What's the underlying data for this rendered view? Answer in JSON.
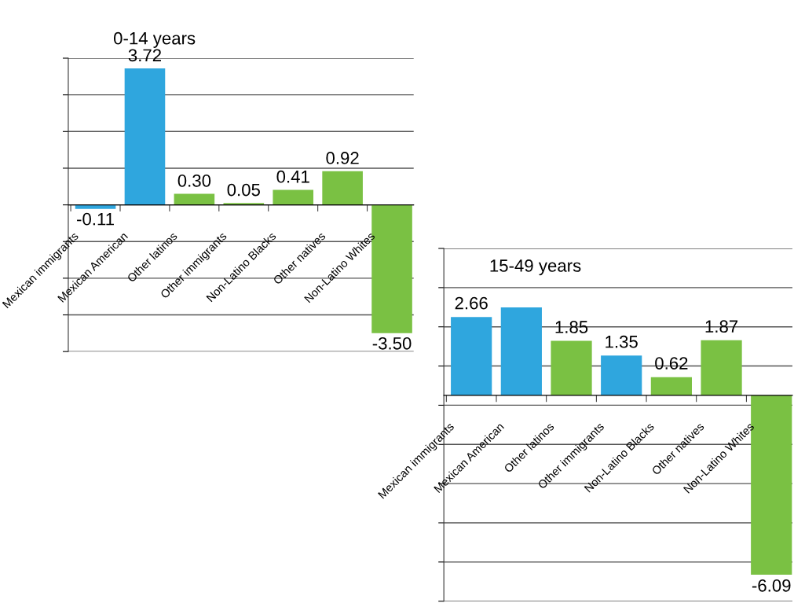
{
  "chart_data": [
    {
      "type": "bar",
      "title": "0-14 years",
      "categories": [
        "Mexican immigrants",
        "Mexican American",
        "Other latinos",
        "Other immigrants",
        "Non-Latino Blacks",
        "Other natives",
        "Non-Latino Whites"
      ],
      "values": [
        -0.11,
        3.72,
        0.3,
        0.05,
        0.41,
        0.92,
        -3.5
      ],
      "value_labels": [
        "-0.11",
        "3.72",
        "0.30",
        "0.05",
        "0.41",
        "0.92",
        "-3.50"
      ],
      "colors": [
        "#2fa6de",
        "#2fa6de",
        "#7ac143",
        "#7ac143",
        "#7ac143",
        "#7ac143",
        "#7ac143"
      ],
      "tick_labels": "x",
      "grid": "y"
    },
    {
      "type": "bar",
      "title": "15-49 years",
      "categories": [
        "Mexican immigrants",
        "Mexican American",
        "Other latinos",
        "Other immigrants",
        "Non-Latino Blacks",
        "Other natives",
        "Non-Latino Whites"
      ],
      "values": [
        2.66,
        2.99,
        1.85,
        1.35,
        0.62,
        1.87,
        -6.09
      ],
      "value_labels": [
        "2.66",
        null,
        "1.85",
        "1.35",
        "0.62",
        "1.87",
        "-6.09"
      ],
      "colors": [
        "#2fa6de",
        "#2fa6de",
        "#7ac143",
        "#2fa6de",
        "#7ac143",
        "#7ac143",
        "#7ac143"
      ],
      "tick_labels": "x",
      "grid": "y"
    }
  ]
}
